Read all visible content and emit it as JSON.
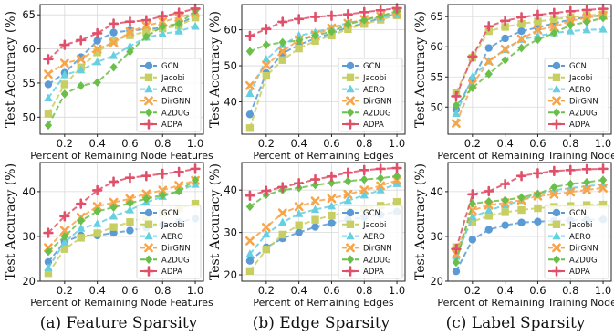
{
  "colors": {
    "GCN": "#5b9bd5",
    "Jacobi": "#c8cf62",
    "AERO": "#66cfe0",
    "DirGNN": "#f7a54a",
    "A2DUG": "#6abf4b",
    "ADPA": "#e0506a"
  },
  "markers": {
    "GCN": "circle",
    "Jacobi": "square",
    "AERO": "triangle",
    "DirGNN": "x",
    "A2DUG": "diamond",
    "ADPA": "plus"
  },
  "captions": [
    "(a) Feature Sparsity",
    "(b) Edge Sparsity",
    "(c) Label Sparsity"
  ],
  "chart_data": [
    {
      "type": "line",
      "xlabel": "Percent of Remaining Node Features",
      "ylabel": "Test Accuracy (%)",
      "ylim": [
        47.5,
        66.5
      ],
      "yticks": [
        50,
        55,
        60,
        65
      ],
      "xticks": [
        "0.2",
        "0.4",
        "0.6",
        "0.8",
        "1.0"
      ],
      "grid": true,
      "legend": "bottom-right",
      "x": [
        0.1,
        0.2,
        0.3,
        0.4,
        0.5,
        0.6,
        0.7,
        0.8,
        0.9,
        1.0
      ],
      "series": [
        {
          "name": "GCN",
          "values": [
            54.8,
            56.5,
            58.8,
            61.2,
            62.4,
            62.7,
            62.9,
            63.1,
            63.6,
            64.9
          ]
        },
        {
          "name": "Jacobi",
          "values": [
            50.5,
            54.8,
            57.3,
            59.5,
            61.2,
            62.0,
            62.5,
            63.0,
            63.4,
            64.6
          ]
        },
        {
          "name": "AERO",
          "values": [
            52.8,
            56.2,
            56.9,
            58.1,
            59.0,
            60.4,
            61.7,
            62.2,
            62.6,
            63.3
          ]
        },
        {
          "name": "DirGNN",
          "values": [
            56.3,
            57.9,
            58.5,
            60.0,
            60.9,
            62.5,
            63.4,
            64.0,
            64.6,
            65.3
          ]
        },
        {
          "name": "A2DUG",
          "values": [
            48.8,
            53.4,
            54.6,
            55.1,
            57.3,
            59.6,
            61.8,
            63.3,
            63.7,
            65.6
          ]
        },
        {
          "name": "ADPA",
          "values": [
            58.5,
            60.6,
            61.3,
            62.3,
            63.7,
            64.0,
            64.2,
            64.8,
            65.3,
            65.9
          ]
        }
      ]
    },
    {
      "type": "line",
      "xlabel": "Percent of Remaining Edges",
      "ylabel": "Test Accuracy (%)",
      "ylim": [
        31,
        67
      ],
      "yticks": [
        40,
        50,
        60
      ],
      "xticks": [
        "0.2",
        "0.4",
        "0.6",
        "0.8",
        "1.0"
      ],
      "grid": true,
      "legend": "bottom-right",
      "x": [
        0.1,
        0.2,
        0.3,
        0.4,
        0.5,
        0.6,
        0.7,
        0.8,
        0.9,
        1.0
      ],
      "series": [
        {
          "name": "GCN",
          "values": [
            36.5,
            48.0,
            53.5,
            55.8,
            57.6,
            59.0,
            60.7,
            61.8,
            63.3,
            64.5
          ]
        },
        {
          "name": "Jacobi",
          "values": [
            32.7,
            47.2,
            51.6,
            54.8,
            56.9,
            58.4,
            60.2,
            61.6,
            62.8,
            64.0
          ]
        },
        {
          "name": "AERO",
          "values": [
            42.3,
            51.8,
            55.8,
            58.4,
            59.3,
            60.6,
            61.9,
            62.8,
            63.4,
            64.2
          ]
        },
        {
          "name": "DirGNN",
          "values": [
            44.5,
            50.2,
            54.0,
            57.2,
            58.6,
            60.5,
            61.8,
            62.9,
            63.8,
            64.7
          ]
        },
        {
          "name": "A2DUG",
          "values": [
            54.0,
            55.8,
            56.5,
            57.0,
            58.4,
            59.5,
            61.5,
            62.7,
            63.8,
            65.2
          ]
        },
        {
          "name": "ADPA",
          "values": [
            58.3,
            60.2,
            62.2,
            63.0,
            63.6,
            63.9,
            64.3,
            64.9,
            65.4,
            66.0
          ]
        }
      ]
    },
    {
      "type": "line",
      "xlabel": "Percent of Remaining Training Nodes",
      "ylabel": "Test Accuracy (%)",
      "ylim": [
        45.5,
        67
      ],
      "yticks": [
        50,
        55,
        60,
        65
      ],
      "xticks": [
        "0.2",
        "0.4",
        "0.6",
        "0.8",
        "1.0"
      ],
      "grid": true,
      "legend": "bottom-right",
      "x": [
        0.1,
        0.2,
        0.3,
        0.4,
        0.5,
        0.6,
        0.7,
        0.8,
        0.9,
        1.0
      ],
      "series": [
        {
          "name": "GCN",
          "values": [
            49.6,
            54.6,
            59.8,
            61.4,
            62.6,
            63.2,
            63.9,
            64.5,
            64.9,
            65.3
          ]
        },
        {
          "name": "Jacobi",
          "values": [
            52.4,
            58.2,
            62.6,
            63.3,
            63.8,
            64.2,
            64.6,
            64.9,
            65.2,
            65.4
          ]
        },
        {
          "name": "AERO",
          "values": [
            48.9,
            55.0,
            57.6,
            59.5,
            61.2,
            61.8,
            62.3,
            62.6,
            62.8,
            62.9
          ]
        },
        {
          "name": "DirGNN",
          "values": [
            47.3,
            53.8,
            57.6,
            59.6,
            61.3,
            62.8,
            63.3,
            64.3,
            64.8,
            65.2
          ]
        },
        {
          "name": "A2DUG",
          "values": [
            50.3,
            53.2,
            55.5,
            57.8,
            59.8,
            61.2,
            62.3,
            63.6,
            64.1,
            64.8
          ]
        },
        {
          "name": "ADPA",
          "values": [
            51.8,
            58.4,
            63.4,
            64.3,
            64.9,
            65.3,
            65.6,
            65.9,
            66.1,
            66.3
          ]
        }
      ]
    },
    {
      "type": "line",
      "xlabel": "Percent of Remaining Node Features",
      "ylabel": "Test Accuracy (%)",
      "ylim": [
        20,
        46.5
      ],
      "yticks": [
        20,
        30,
        40
      ],
      "xticks": [
        "0.2",
        "0.4",
        "0.6",
        "0.8",
        "1.0"
      ],
      "grid": true,
      "legend": "bottom-right",
      "x": [
        0.1,
        0.2,
        0.3,
        0.4,
        0.5,
        0.6,
        0.7,
        0.8,
        0.9,
        1.0
      ],
      "series": [
        {
          "name": "GCN",
          "values": [
            24.3,
            28.8,
            30.2,
            30.2,
            30.8,
            31.3,
            32.0,
            32.6,
            33.2,
            34.0
          ]
        },
        {
          "name": "Jacobi",
          "values": [
            21.8,
            27.2,
            29.7,
            30.7,
            32.1,
            33.2,
            34.3,
            35.3,
            36.2,
            37.3
          ]
        },
        {
          "name": "AERO",
          "values": [
            23.0,
            28.7,
            31.8,
            32.8,
            34.5,
            35.9,
            37.6,
            38.9,
            40.2,
            41.6
          ]
        },
        {
          "name": "DirGNN",
          "values": [
            27.5,
            31.3,
            34.3,
            36.7,
            37.6,
            38.4,
            39.5,
            40.3,
            41.4,
            42.5
          ]
        },
        {
          "name": "A2DUG",
          "values": [
            26.6,
            30.0,
            33.5,
            35.6,
            36.5,
            37.4,
            38.4,
            39.2,
            40.1,
            42.6
          ]
        },
        {
          "name": "ADPA",
          "values": [
            30.8,
            34.5,
            37.3,
            40.3,
            42.2,
            43.1,
            43.5,
            44.0,
            44.4,
            45.1
          ]
        }
      ]
    },
    {
      "type": "line",
      "xlabel": "Percent of Remaining Edges",
      "ylabel": "Test Accuracy (%)",
      "ylim": [
        18.5,
        46.5
      ],
      "yticks": [
        20,
        30,
        40
      ],
      "xticks": [
        "0.2",
        "0.4",
        "0.6",
        "0.8",
        "1.0"
      ],
      "grid": true,
      "legend": "bottom-right",
      "x": [
        0.1,
        0.2,
        0.3,
        0.4,
        0.5,
        0.6,
        0.7,
        0.8,
        0.9,
        1.0
      ],
      "series": [
        {
          "name": "GCN",
          "values": [
            23.3,
            26.5,
            28.6,
            30.0,
            31.3,
            32.2,
            33.0,
            33.6,
            34.2,
            34.9
          ]
        },
        {
          "name": "Jacobi",
          "values": [
            20.9,
            26.0,
            29.5,
            31.7,
            33.0,
            34.0,
            34.8,
            35.6,
            36.3,
            37.2
          ]
        },
        {
          "name": "AERO",
          "values": [
            24.9,
            29.6,
            32.4,
            34.4,
            35.4,
            36.2,
            37.5,
            38.8,
            40.0,
            41.5
          ]
        },
        {
          "name": "DirGNN",
          "values": [
            28.0,
            31.2,
            34.6,
            36.1,
            37.4,
            38.0,
            39.0,
            40.0,
            41.0,
            42.3
          ]
        },
        {
          "name": "A2DUG",
          "values": [
            36.1,
            38.9,
            40.0,
            40.5,
            41.2,
            41.7,
            42.1,
            42.5,
            42.8,
            43.3
          ]
        },
        {
          "name": "ADPA",
          "values": [
            38.7,
            39.8,
            40.7,
            41.6,
            42.5,
            43.2,
            44.1,
            44.7,
            45.0,
            45.2
          ]
        }
      ]
    },
    {
      "type": "line",
      "xlabel": "Percent of Remaining Training Nodes",
      "ylabel": "Test Accuracy (%)",
      "ylim": [
        20,
        46.5
      ],
      "yticks": [
        20,
        30,
        40
      ],
      "xticks": [
        "0.2",
        "0.4",
        "0.6",
        "0.8",
        "1.0"
      ],
      "grid": true,
      "legend": "bottom-right",
      "x": [
        0.1,
        0.2,
        0.3,
        0.4,
        0.5,
        0.6,
        0.7,
        0.8,
        0.9,
        1.0
      ],
      "series": [
        {
          "name": "GCN",
          "values": [
            22.2,
            29.3,
            31.5,
            32.5,
            33.1,
            33.3,
            33.5,
            33.6,
            33.7,
            33.8
          ]
        },
        {
          "name": "Jacobi",
          "values": [
            27.6,
            33.3,
            34.6,
            35.4,
            35.9,
            36.3,
            36.6,
            36.8,
            37.0,
            37.1
          ]
        },
        {
          "name": "AERO",
          "values": [
            25.5,
            34.3,
            35.8,
            37.0,
            38.0,
            39.5,
            40.3,
            40.8,
            41.2,
            41.6
          ]
        },
        {
          "name": "DirGNN",
          "values": [
            26.1,
            35.8,
            37.0,
            37.5,
            38.1,
            39.0,
            39.4,
            39.9,
            40.4,
            40.8
          ]
        },
        {
          "name": "A2DUG",
          "values": [
            24.2,
            37.3,
            37.8,
            38.1,
            38.7,
            39.5,
            41.0,
            41.7,
            42.1,
            42.6
          ]
        },
        {
          "name": "ADPA",
          "values": [
            27.2,
            39.4,
            40.1,
            41.7,
            43.5,
            44.1,
            44.6,
            44.8,
            45.0,
            45.1
          ]
        }
      ]
    }
  ]
}
